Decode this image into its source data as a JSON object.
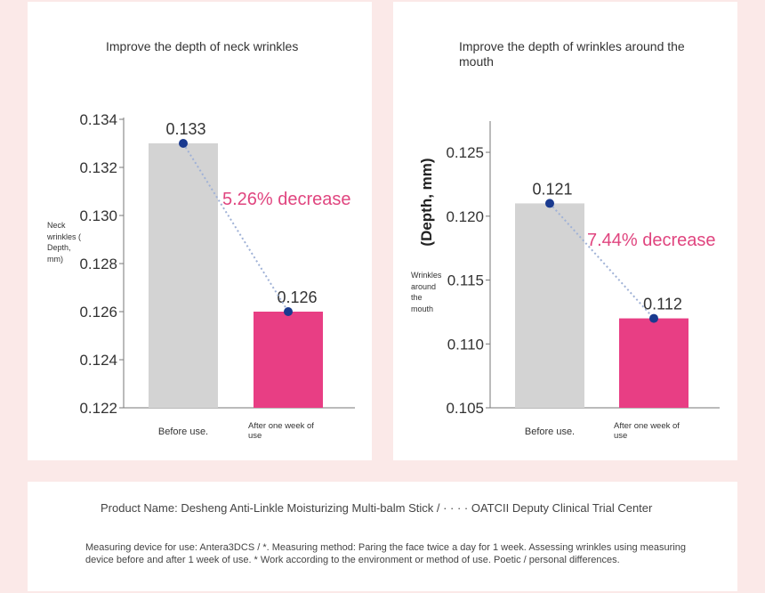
{
  "chart_data": [
    {
      "type": "bar",
      "title": "Improve the depth of neck wrinkles",
      "ylabel": "Neck wrinkles ( Depth, mm)",
      "categories": [
        "Before use.",
        "After one week of use"
      ],
      "values": [
        0.133,
        0.126
      ],
      "value_labels": [
        "0.133",
        "0.126"
      ],
      "ylim": [
        0.122,
        0.134
      ],
      "yticks": [
        "0.134",
        "0.132",
        "0.130",
        "0.128",
        "0.126",
        "0.124",
        "0.122"
      ],
      "ytick_values": [
        0.134,
        0.132,
        0.13,
        0.128,
        0.126,
        0.124,
        0.122
      ],
      "annotation": "5.26% decrease",
      "colors": [
        "#d3d3d3",
        "#e83e84"
      ]
    },
    {
      "type": "bar",
      "title": "Improve the depth of wrinkles around the mouth",
      "ylabel": "(Depth, mm)",
      "ylabel2": "Wrinkles around the mouth",
      "categories": [
        "Before use.",
        "After one week of use"
      ],
      "values": [
        0.121,
        0.112
      ],
      "value_labels": [
        "0.121",
        "0.112"
      ],
      "ylim": [
        0.105,
        0.128
      ],
      "yticks": [
        "0.125",
        "0.120",
        "0.115",
        "0.110",
        "0.105"
      ],
      "ytick_values": [
        0.125,
        0.12,
        0.115,
        0.11,
        0.105
      ],
      "annotation": "7.44% decrease",
      "colors": [
        "#d3d3d3",
        "#e83e84"
      ]
    }
  ],
  "footer": {
    "product": "Product Name: Desheng Anti-Linkle Moisturizing Multi-balm Stick / · · · · OATCII Deputy Clinical Trial Center",
    "note": "Measuring device for use: Antera3DCS / *. Measuring method: Paring the face twice a day for 1 week. Assessing wrinkles using measuring device before and after 1 week of use. * Work according to the environment or method of use. Poetic / personal differences."
  },
  "colors": {
    "bar_before": "#d3d3d3",
    "bar_after": "#e83e84",
    "annotation": "#e0457f",
    "marker": "#1a3a8f",
    "connector": "#9fb1d6"
  }
}
